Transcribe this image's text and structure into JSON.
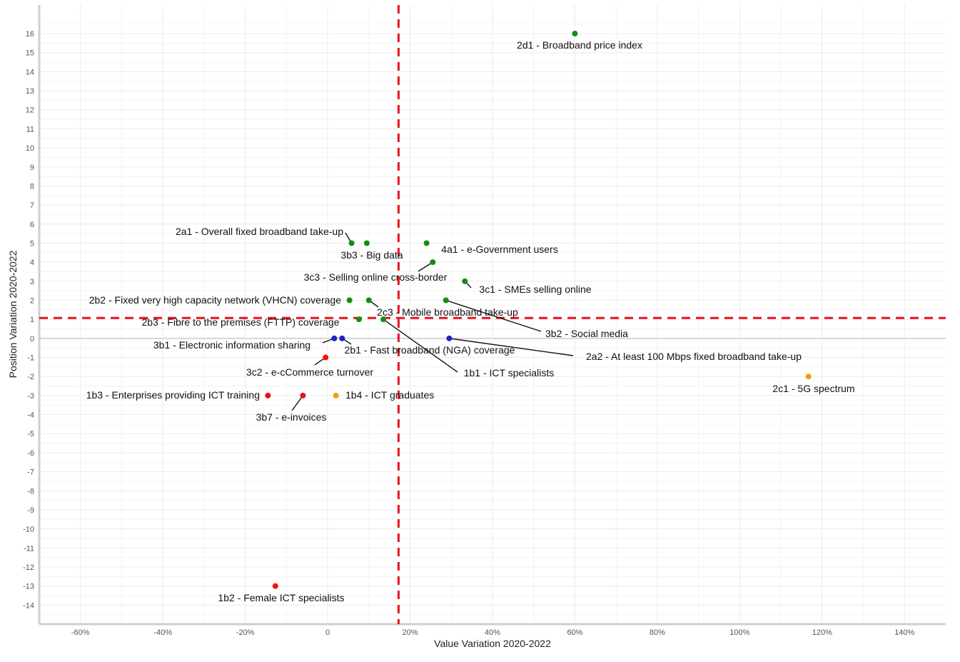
{
  "chart_data": {
    "type": "scatter",
    "xlabel": "Value Variation  2020-2022",
    "ylabel": "Position Variation  2020-2022",
    "xlim": [
      -0.7,
      1.5
    ],
    "ylim": [
      -15,
      17.5
    ],
    "x_ticks": [
      -0.6,
      -0.4,
      -0.2,
      0,
      0.2,
      0.4,
      0.6,
      0.8,
      1.0,
      1.2,
      1.4
    ],
    "x_tick_labels": [
      "-60%",
      "-40%",
      "-20%",
      "0",
      "20%",
      "40%",
      "60%",
      "80%",
      "100%",
      "120%",
      "140%"
    ],
    "y_ticks": [
      -14,
      -13,
      -12,
      -11,
      -10,
      -9,
      -8,
      -7,
      -6,
      -5,
      -4,
      -3,
      -2,
      -1,
      0,
      1,
      2,
      3,
      4,
      5,
      6,
      7,
      8,
      9,
      10,
      11,
      12,
      13,
      14,
      15,
      16
    ],
    "grid": true,
    "reference_lines": {
      "x": 0.172,
      "y": 1.07,
      "color": "#e8141c",
      "style": "dashed"
    },
    "colors": {
      "green": "#138c13",
      "blue": "#2020c8",
      "red": "#ee1111",
      "orange": "#f59e0b"
    },
    "points": [
      {
        "label": "2d1 - Broadband price index",
        "x": 0.6,
        "y": 16,
        "color": "green"
      },
      {
        "label": "2a1 - Overall fixed broadband take-up",
        "x": 0.058,
        "y": 5,
        "color": "green"
      },
      {
        "label": "3b3 - Big data",
        "x": 0.095,
        "y": 5,
        "color": "green"
      },
      {
        "label": "4a1 - e-Government users",
        "x": 0.24,
        "y": 5,
        "color": "green"
      },
      {
        "label": "3c3 - Selling online cross-border",
        "x": 0.255,
        "y": 4,
        "color": "green"
      },
      {
        "label": "3c1 - SMEs selling online",
        "x": 0.333,
        "y": 3,
        "color": "green"
      },
      {
        "label": "2b2 - Fixed very high capacity network (VHCN) coverage",
        "x": 0.053,
        "y": 2,
        "color": "green"
      },
      {
        "label": "2c3 - Mobile broadband take-up",
        "x": 0.1,
        "y": 2,
        "color": "green"
      },
      {
        "label": "3b2 - Social media",
        "x": 0.287,
        "y": 2,
        "color": "green"
      },
      {
        "label": "2b3 - Fibre to the premises (FTTP) coverage",
        "x": 0.076,
        "y": 1,
        "color": "green"
      },
      {
        "label": "1b1 - ICT specialists",
        "x": 0.135,
        "y": 1,
        "color": "green"
      },
      {
        "label": "3b1 - Electronic information sharing",
        "x": 0.016,
        "y": 0,
        "color": "blue"
      },
      {
        "label": "2b1 - Fast broadband (NGA) coverage",
        "x": 0.035,
        "y": 0,
        "color": "blue"
      },
      {
        "label": "2a2 - At least 100 Mbps fixed broadband take-up",
        "x": 0.295,
        "y": 0,
        "color": "blue"
      },
      {
        "label": "3c2 - e-cCommerce turnover",
        "x": -0.005,
        "y": -1,
        "color": "red"
      },
      {
        "label": "1b3 - Enterprises providing ICT training",
        "x": -0.145,
        "y": -3,
        "color": "red"
      },
      {
        "label": "3b7 - e-invoices",
        "x": -0.06,
        "y": -3,
        "color": "red"
      },
      {
        "label": "1b4 - ICT graduates",
        "x": 0.02,
        "y": -3,
        "color": "orange"
      },
      {
        "label": "2c1 - 5G spectrum",
        "x": 1.167,
        "y": -2,
        "color": "orange"
      },
      {
        "label": "1b2 - Female ICT specialists",
        "x": -0.127,
        "y": -13,
        "color": "red"
      }
    ]
  }
}
